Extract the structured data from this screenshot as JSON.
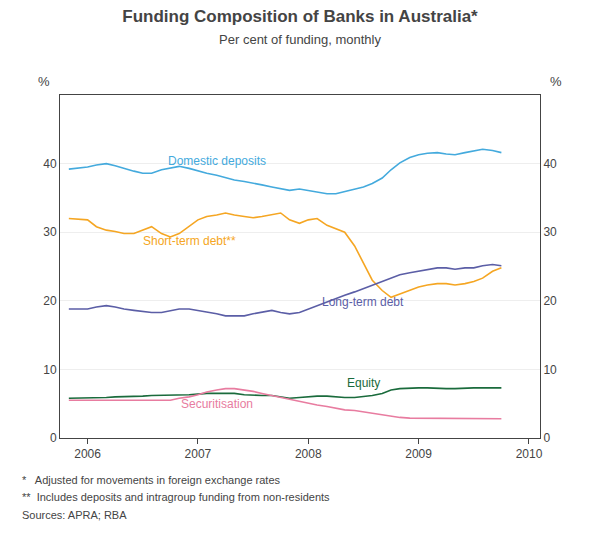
{
  "chart_data": {
    "type": "line",
    "title": "Funding Composition of Banks in Australia*",
    "subtitle": "Per cent of funding, monthly",
    "ylabel": "%",
    "y2label": "%",
    "annotations": [
      "*   Adjusted for movements in foreign exchange rates",
      "**  Includes deposits and intragroup funding from non-residents",
      "Sources: APRA; RBA"
    ],
    "xlim": [
      2005.75,
      2010.1
    ],
    "xticks": [
      2006,
      2007,
      2008,
      2009,
      2010
    ],
    "ylim": [
      0,
      50
    ],
    "yticks": [
      0,
      10,
      20,
      30,
      40
    ],
    "y2lim": [
      0,
      50
    ],
    "y2ticks": [
      0,
      10,
      20,
      30,
      40
    ],
    "grid": "y",
    "x": [
      2005.83,
      2006.0,
      2006.08,
      2006.17,
      2006.25,
      2006.33,
      2006.42,
      2006.5,
      2006.58,
      2006.67,
      2006.75,
      2006.83,
      2006.92,
      2007.0,
      2007.08,
      2007.17,
      2007.25,
      2007.33,
      2007.42,
      2007.5,
      2007.58,
      2007.67,
      2007.75,
      2007.83,
      2007.92,
      2008.0,
      2008.08,
      2008.17,
      2008.25,
      2008.33,
      2008.42,
      2008.5,
      2008.58,
      2008.67,
      2008.75,
      2008.83,
      2008.92,
      2009.0,
      2009.08,
      2009.17,
      2009.25,
      2009.33,
      2009.42,
      2009.5,
      2009.58,
      2009.67,
      2009.75
    ],
    "series": [
      {
        "name": "Domestic deposits",
        "color": "#44aadd",
        "values": [
          39.2,
          39.5,
          39.8,
          40.0,
          39.7,
          39.3,
          38.9,
          38.6,
          38.6,
          39.1,
          39.4,
          39.6,
          39.3,
          38.9,
          38.6,
          38.3,
          37.9,
          37.6,
          37.4,
          37.1,
          36.9,
          36.6,
          36.3,
          36.1,
          36.3,
          36.1,
          35.9,
          35.6,
          35.6,
          35.9,
          36.3,
          36.6,
          37.1,
          37.9,
          39.1,
          40.1,
          40.9,
          41.3,
          41.5,
          41.6,
          41.4,
          41.3,
          41.6,
          41.9,
          42.1,
          41.9,
          41.6
        ]
      },
      {
        "name": "Short-term debt**",
        "color": "#f5a623",
        "values": [
          32.0,
          31.8,
          30.8,
          30.3,
          30.1,
          29.8,
          29.8,
          30.3,
          30.8,
          29.8,
          29.3,
          29.8,
          30.8,
          31.8,
          32.3,
          32.5,
          32.8,
          32.5,
          32.3,
          32.1,
          32.3,
          32.6,
          32.8,
          31.8,
          31.3,
          31.8,
          32.0,
          31.0,
          30.5,
          30.0,
          28.0,
          25.5,
          23.0,
          21.5,
          20.5,
          21.0,
          21.5,
          22.0,
          22.3,
          22.5,
          22.5,
          22.3,
          22.5,
          22.8,
          23.3,
          24.3,
          24.8
        ]
      },
      {
        "name": "Long-term debt",
        "color": "#5b5ea6",
        "values": [
          18.8,
          18.8,
          19.1,
          19.3,
          19.1,
          18.8,
          18.6,
          18.5,
          18.3,
          18.3,
          18.5,
          18.8,
          18.8,
          18.6,
          18.3,
          18.1,
          17.8,
          17.8,
          17.8,
          18.1,
          18.3,
          18.6,
          18.3,
          18.1,
          18.3,
          18.8,
          19.3,
          19.8,
          20.3,
          20.8,
          21.3,
          21.8,
          22.3,
          22.8,
          23.3,
          23.8,
          24.1,
          24.3,
          24.5,
          24.8,
          24.8,
          24.6,
          24.8,
          24.8,
          25.1,
          25.3,
          25.1
        ]
      },
      {
        "name": "Equity",
        "color": "#1a6b3c",
        "values": [
          5.8,
          5.8,
          5.9,
          5.9,
          6.0,
          6.0,
          6.0,
          6.1,
          6.2,
          6.2,
          6.3,
          6.3,
          6.3,
          6.4,
          6.5,
          6.5,
          6.5,
          6.5,
          6.3,
          6.2,
          6.2,
          6.2,
          6.0,
          5.8,
          5.9,
          6.0,
          6.1,
          6.1,
          6.0,
          5.9,
          5.9,
          6.0,
          6.2,
          6.5,
          7.0,
          7.2,
          7.3,
          7.3,
          7.3,
          7.2,
          7.2,
          7.2,
          7.3,
          7.3,
          7.3,
          7.3,
          7.3
        ]
      },
      {
        "name": "Securitisation",
        "color": "#e87ca0",
        "values": [
          5.5,
          5.5,
          5.5,
          5.5,
          5.5,
          5.5,
          5.5,
          5.5,
          5.5,
          5.5,
          5.5,
          5.8,
          6.0,
          6.3,
          6.7,
          7.0,
          7.2,
          7.2,
          7.0,
          6.8,
          6.5,
          6.2,
          5.9,
          5.6,
          5.3,
          5.0,
          4.8,
          4.6,
          4.3,
          4.1,
          4.0,
          3.8,
          3.6,
          3.3,
          3.1,
          3.0,
          2.9,
          2.9,
          2.9,
          2.9,
          2.9,
          2.9,
          2.8,
          2.8,
          2.8,
          2.8,
          2.8
        ]
      }
    ]
  }
}
